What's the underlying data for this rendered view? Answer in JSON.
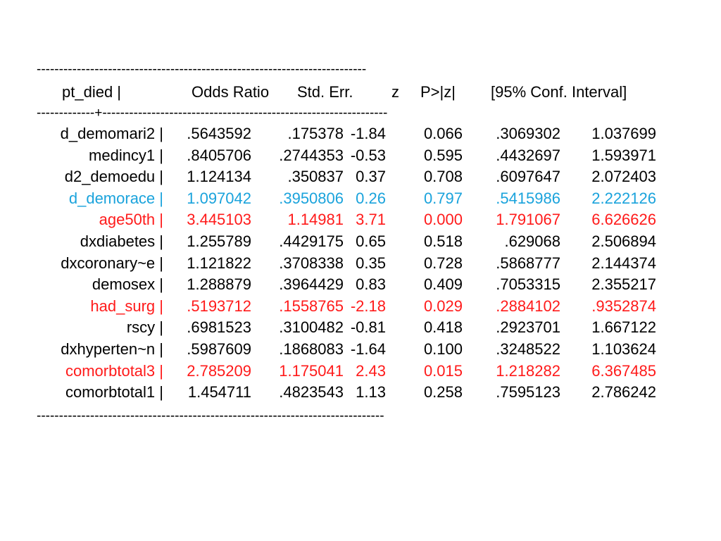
{
  "table": {
    "top_rule": "--------------------------------------------------------------------------",
    "header_rule": "-------------+----------------------------------------------------------------",
    "bottom_rule": "------------------------------------------------------------------------------",
    "headers": {
      "variable": "pt_died |",
      "odds_ratio": "Odds Ratio",
      "std_err": "Std. Err.",
      "z": "z",
      "p": "P>|z|",
      "ci": "[95% Conf. Interval]"
    },
    "rows": [
      {
        "label": "d_demomari2 |",
        "or": ".5643592",
        "se": ".175378",
        "z": "-1.84",
        "p": "0.066",
        "lo": ".3069302",
        "hi": "1.037699",
        "color": "#000000"
      },
      {
        "label": "medincy1 |",
        "or": ".8405706",
        "se": ".2744353",
        "z": "-0.53",
        "p": "0.595",
        "lo": ".4432697",
        "hi": "1.593971",
        "color": "#000000"
      },
      {
        "label": "d2_demoedu |",
        "or": "1.124134",
        "se": ".350837",
        "z": "0.37",
        "p": "0.708",
        "lo": ".6097647",
        "hi": "2.072403",
        "color": "#000000"
      },
      {
        "label": "d_demorace |",
        "or": "1.097042",
        "se": ".3950806",
        "z": "0.26",
        "p": "0.797",
        "lo": ".5415986",
        "hi": "2.222126",
        "color": "#1aa3dc"
      },
      {
        "label": "age50th |",
        "or": "3.445103",
        "se": "1.14981",
        "z": "3.71",
        "p": "0.000",
        "lo": "1.791067",
        "hi": "6.626626",
        "color": "#ff1a1a"
      },
      {
        "label": "dxdiabetes |",
        "or": "1.255789",
        "se": ".4429175",
        "z": "0.65",
        "p": "0.518",
        "lo": ".629068",
        "hi": "2.506894",
        "color": "#000000"
      },
      {
        "label": "dxcoronary~e |",
        "or": "1.121822",
        "se": ".3708338",
        "z": "0.35",
        "p": "0.728",
        "lo": ".5868777",
        "hi": "2.144374",
        "color": "#000000"
      },
      {
        "label": "demosex |",
        "or": "1.288879",
        "se": ".3964429",
        "z": "0.83",
        "p": "0.409",
        "lo": ".7053315",
        "hi": "2.355217",
        "color": "#000000"
      },
      {
        "label": "had_surg |",
        "or": ".5193712",
        "se": ".1558765",
        "z": "-2.18",
        "p": "0.029",
        "lo": ".2884102",
        "hi": ".9352874",
        "color": "#ff1a1a"
      },
      {
        "label": "rscy |",
        "or": ".6981523",
        "se": ".3100482",
        "z": "-0.81",
        "p": "0.418",
        "lo": ".2923701",
        "hi": "1.667122",
        "color": "#000000"
      },
      {
        "label": "dxhyperten~n |",
        "or": ".5987609",
        "se": ".1868083",
        "z": "-1.64",
        "p": "0.100",
        "lo": ".3248522",
        "hi": "1.103624",
        "color": "#000000"
      },
      {
        "label": "comorbtotal3 |",
        "or": "2.785209",
        "se": "1.175041",
        "z": "2.43",
        "p": "0.015",
        "lo": "1.218282",
        "hi": "6.367485",
        "color": "#ff1a1a"
      },
      {
        "label": "comorbtotal1 |",
        "or": "1.454711",
        "se": ".4823543",
        "z": "1.13",
        "p": "0.258",
        "lo": ".7595123",
        "hi": "2.786242",
        "color": "#000000"
      }
    ]
  }
}
